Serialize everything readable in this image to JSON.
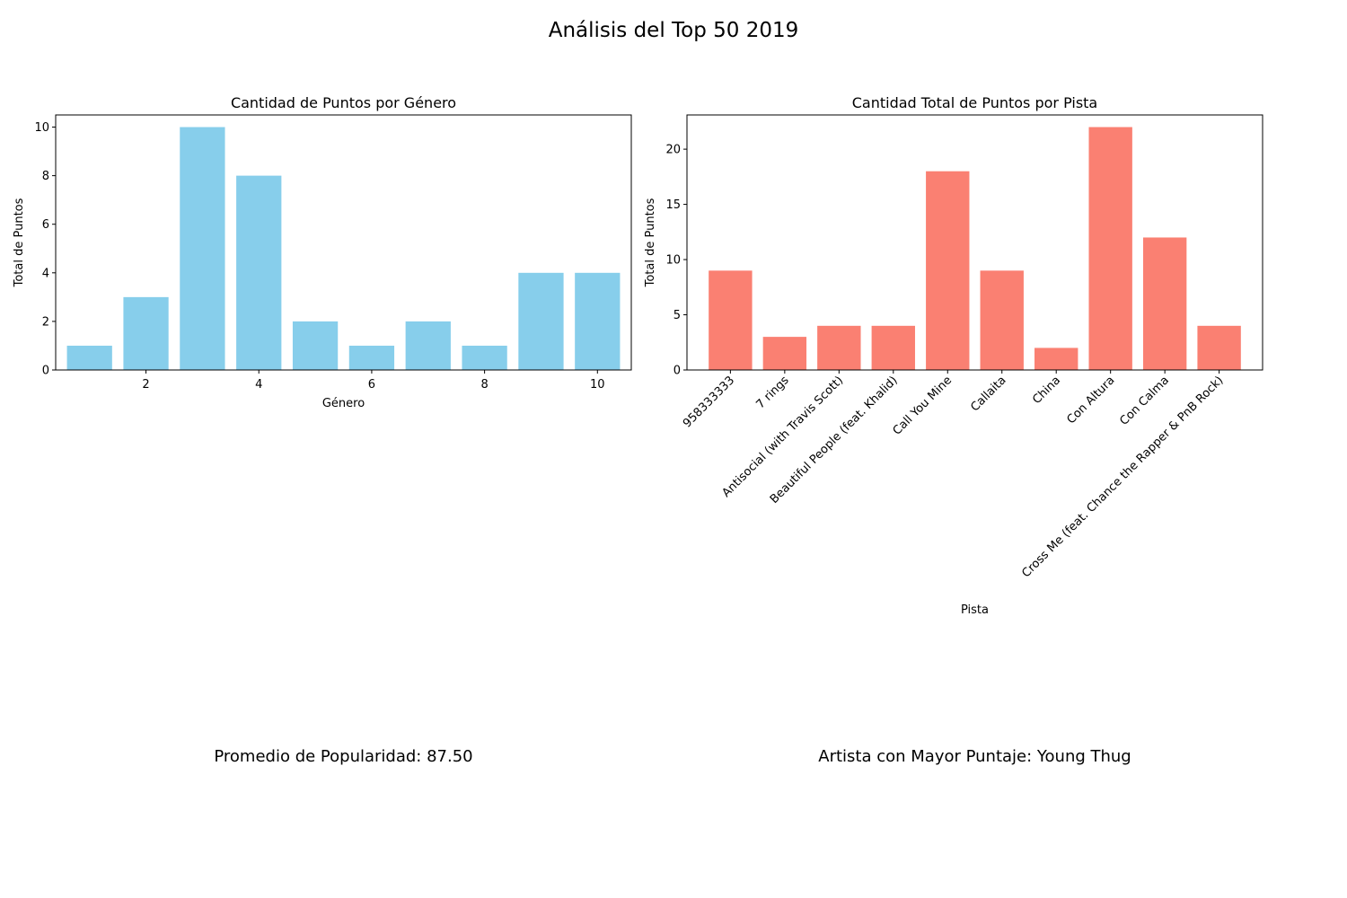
{
  "figure_title": "Análisis del Top 50 2019",
  "colors": {
    "genre_bars": "#87ceeb",
    "track_bars": "#fa8072",
    "axis": "#000000"
  },
  "chart_data": [
    {
      "type": "bar",
      "title": "Cantidad de Puntos por Género",
      "xlabel": "Género",
      "ylabel": "Total de Puntos",
      "x": [
        1,
        2,
        3,
        4,
        5,
        6,
        7,
        8,
        9,
        10
      ],
      "values": [
        1,
        3,
        10,
        8,
        2,
        1,
        2,
        1,
        4,
        4
      ],
      "xlim": [
        0.4,
        10.6
      ],
      "ylim": [
        0,
        10.5
      ],
      "xticks": [
        2,
        4,
        6,
        8,
        10
      ],
      "yticks": [
        0,
        2,
        4,
        6,
        8,
        10
      ],
      "grid": false,
      "color": "#87ceeb"
    },
    {
      "type": "bar",
      "title": "Cantidad Total de Puntos por Pista",
      "xlabel": "Pista",
      "ylabel": "Total de Puntos",
      "categories": [
        "958333333",
        "7 rings",
        "Antisocial (with Travis Scott)",
        "Beautiful People (feat. Khalid)",
        "Call You Mine",
        "Callaita",
        "China",
        "Con Altura",
        "Con Calma",
        "Cross Me (feat. Chance the Rapper & PnB Rock)"
      ],
      "values": [
        9,
        3,
        4,
        4,
        18,
        9,
        2,
        22,
        12,
        4
      ],
      "ylim": [
        0,
        23.1
      ],
      "yticks": [
        0,
        5,
        10,
        15,
        20
      ],
      "tick_rotation": 45,
      "grid": false,
      "color": "#fa8072"
    }
  ],
  "stats": {
    "popularity_text": "Promedio de Popularidad: 87.50",
    "top_artist_text": "Artista con Mayor Puntaje: Young Thug"
  }
}
